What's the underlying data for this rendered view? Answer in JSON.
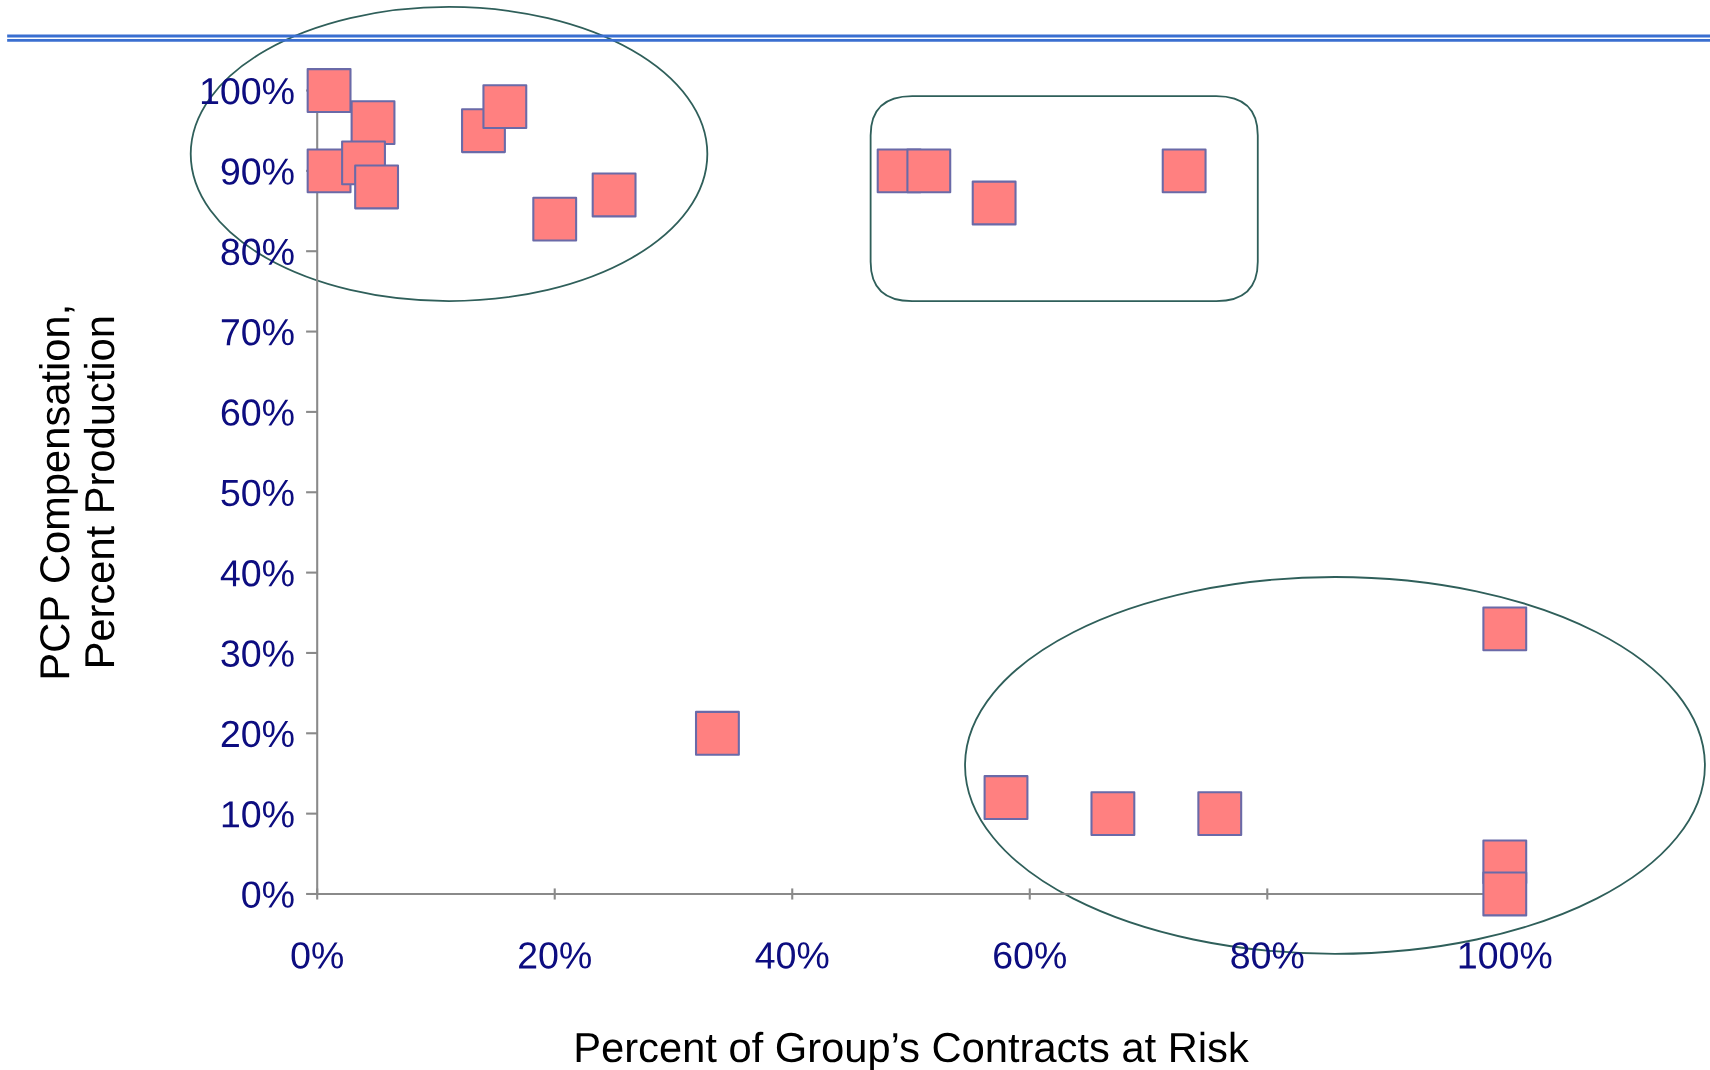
{
  "chart_data": {
    "type": "scatter",
    "xlabel": "Percent of Group’s Contracts at Risk",
    "ylabel": "PCP Compensation,\nPercent Production",
    "x": [
      1,
      1,
      4.7,
      3.9,
      5,
      14,
      15.8,
      20,
      25,
      33.7,
      49,
      51.5,
      57,
      73,
      58,
      67,
      76,
      100,
      100,
      100
    ],
    "series": [
      {
        "color": "#ff8080",
        "values": [
          100,
          90,
          96,
          91,
          88,
          95,
          98,
          84,
          87,
          20,
          90,
          90,
          86,
          90,
          12,
          10,
          10,
          33,
          4,
          0
        ]
      }
    ],
    "marker": "square",
    "grid": false,
    "xlim": [
      0,
      100
    ],
    "ylim": [
      0,
      100
    ],
    "xticks": [
      {
        "value": 0,
        "label": "0%"
      },
      {
        "value": 20,
        "label": "20%"
      },
      {
        "value": 40,
        "label": "40%"
      },
      {
        "value": 60,
        "label": "60%"
      },
      {
        "value": 80,
        "label": "80%"
      },
      {
        "value": 100,
        "label": "100%"
      }
    ],
    "yticks": [
      {
        "value": 0,
        "label": "0%"
      },
      {
        "value": 10,
        "label": "10%"
      },
      {
        "value": 20,
        "label": "20%"
      },
      {
        "value": 30,
        "label": "30%"
      },
      {
        "value": 40,
        "label": "40%"
      },
      {
        "value": 50,
        "label": "50%"
      },
      {
        "value": 60,
        "label": "60%"
      },
      {
        "value": 70,
        "label": "70%"
      },
      {
        "value": 80,
        "label": "80%"
      },
      {
        "value": 90,
        "label": "90%"
      },
      {
        "value": 100,
        "label": "100%"
      }
    ]
  }
}
